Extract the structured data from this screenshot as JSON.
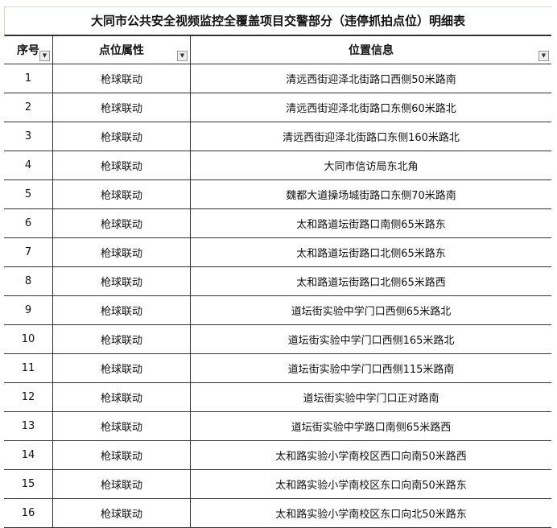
{
  "title": "大同市公共安全视频监控全覆盖项目交警部分（违停抓拍点位）明细表",
  "headers": [
    "序号",
    "点位属性",
    "位置信息"
  ],
  "filter_icon": "dropdown-arrow-icon",
  "rows": [
    {
      "no": "1",
      "type": "枪球联动",
      "loc": "清远西街迎泽北街路口西侧50米路南"
    },
    {
      "no": "2",
      "type": "枪球联动",
      "loc": "清远西街迎泽北街路口东侧60米路北"
    },
    {
      "no": "3",
      "type": "枪球联动",
      "loc": "清远西街迎泽北街路口东侧160米路北"
    },
    {
      "no": "4",
      "type": "枪球联动",
      "loc": "大同市信访局东北角"
    },
    {
      "no": "5",
      "type": "枪球联动",
      "loc": "魏都大道操场城街路口东侧70米路南"
    },
    {
      "no": "6",
      "type": "枪球联动",
      "loc": "太和路道坛街路口南侧65米路东"
    },
    {
      "no": "7",
      "type": "枪球联动",
      "loc": "太和路道坛街路口北侧65米路东"
    },
    {
      "no": "8",
      "type": "枪球联动",
      "loc": "太和路道坛街路口北侧65米路西"
    },
    {
      "no": "9",
      "type": "枪球联动",
      "loc": "道坛街实验中学门口西侧65米路北"
    },
    {
      "no": "10",
      "type": "枪球联动",
      "loc": "道坛街实验中学门口西侧165米路北"
    },
    {
      "no": "11",
      "type": "枪球联动",
      "loc": "道坛街实验中学门口西侧115米路南"
    },
    {
      "no": "12",
      "type": "枪球联动",
      "loc": "道坛街实验中学门口正对路南"
    },
    {
      "no": "13",
      "type": "枪球联动",
      "loc": "道坛街实验中学路口南侧65米路西"
    },
    {
      "no": "14",
      "type": "枪球联动",
      "loc": "太和路实验小学南校区西口向南50米路西"
    },
    {
      "no": "15",
      "type": "枪球联动",
      "loc": "太和路实验小学南校区东口向南50米路东"
    },
    {
      "no": "16",
      "type": "枪球联动",
      "loc": "太和路实验小学南校区东口向北50米路东"
    }
  ]
}
